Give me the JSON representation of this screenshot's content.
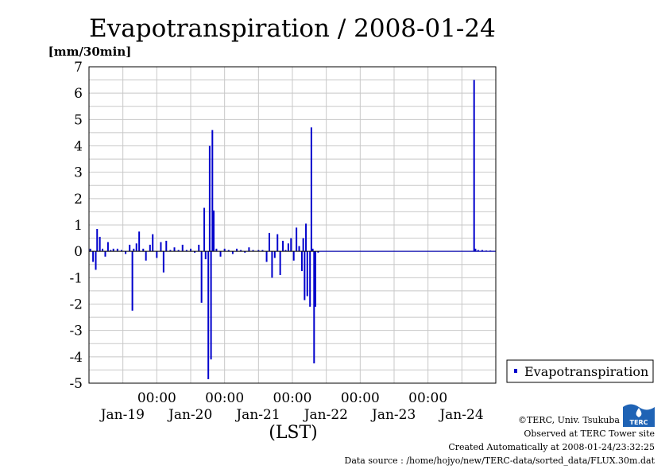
{
  "chart_data": {
    "type": "bar",
    "title": "Evapotranspiration / 2008-01-24",
    "ylabel": "[mm/30min]",
    "xlabel": "(LST)",
    "ylim": [
      -5,
      7
    ],
    "yticks": [
      7,
      6,
      5,
      4,
      3,
      2,
      1,
      0,
      -1,
      -2,
      -3,
      -4,
      -5
    ],
    "xlim": [
      0,
      6
    ],
    "xticks": [
      {
        "x": 1,
        "time": "00:00",
        "day": "Jan-19"
      },
      {
        "x": 2,
        "time": "00:00",
        "day": "Jan-20"
      },
      {
        "x": 3,
        "time": "00:00",
        "day": "Jan-21"
      },
      {
        "x": 4,
        "time": "00:00",
        "day": "Jan-22"
      },
      {
        "x": 5,
        "time": "00:00",
        "day": "Jan-23"
      },
      {
        "x": 6,
        "time": "",
        "day": "Jan-24"
      }
    ],
    "grid": true,
    "legend_position": "right",
    "series": [
      {
        "name": "Evapotranspiration",
        "color": "#0000cc",
        "points": [
          [
            0.02,
            0.1
          ],
          [
            0.06,
            -0.4
          ],
          [
            0.1,
            -0.7
          ],
          [
            0.12,
            0.85
          ],
          [
            0.16,
            0.55
          ],
          [
            0.2,
            0.1
          ],
          [
            0.24,
            -0.2
          ],
          [
            0.28,
            0.35
          ],
          [
            0.32,
            0.05
          ],
          [
            0.36,
            0.1
          ],
          [
            0.42,
            0.1
          ],
          [
            0.48,
            0.05
          ],
          [
            0.54,
            -0.1
          ],
          [
            0.6,
            0.25
          ],
          [
            0.64,
            -2.25
          ],
          [
            0.66,
            0.1
          ],
          [
            0.7,
            0.3
          ],
          [
            0.74,
            0.75
          ],
          [
            0.8,
            0.1
          ],
          [
            0.84,
            -0.35
          ],
          [
            0.9,
            0.25
          ],
          [
            0.94,
            0.65
          ],
          [
            1.0,
            -0.25
          ],
          [
            1.06,
            0.35
          ],
          [
            1.1,
            -0.8
          ],
          [
            1.14,
            0.4
          ],
          [
            1.2,
            0.05
          ],
          [
            1.26,
            0.15
          ],
          [
            1.32,
            0.05
          ],
          [
            1.38,
            0.25
          ],
          [
            1.44,
            0.05
          ],
          [
            1.5,
            0.1
          ],
          [
            1.56,
            -0.05
          ],
          [
            1.62,
            0.25
          ],
          [
            1.66,
            -1.95
          ],
          [
            1.7,
            1.65
          ],
          [
            1.72,
            -0.3
          ],
          [
            1.76,
            -4.85
          ],
          [
            1.78,
            4.0
          ],
          [
            1.8,
            -4.1
          ],
          [
            1.82,
            4.6
          ],
          [
            1.84,
            1.55
          ],
          [
            1.88,
            0.1
          ],
          [
            1.94,
            -0.2
          ],
          [
            2.0,
            0.1
          ],
          [
            2.06,
            0.05
          ],
          [
            2.12,
            -0.1
          ],
          [
            2.18,
            0.1
          ],
          [
            2.24,
            0.05
          ],
          [
            2.3,
            -0.05
          ],
          [
            2.36,
            0.15
          ],
          [
            2.42,
            0.05
          ],
          [
            2.5,
            0.05
          ],
          [
            2.56,
            0.05
          ],
          [
            2.62,
            -0.4
          ],
          [
            2.66,
            0.7
          ],
          [
            2.7,
            -1.0
          ],
          [
            2.74,
            -0.25
          ],
          [
            2.78,
            0.65
          ],
          [
            2.82,
            -0.9
          ],
          [
            2.86,
            0.4
          ],
          [
            2.9,
            0.05
          ],
          [
            2.94,
            0.3
          ],
          [
            2.98,
            0.5
          ],
          [
            3.02,
            -0.35
          ],
          [
            3.06,
            0.9
          ],
          [
            3.1,
            0.2
          ],
          [
            3.14,
            -0.75
          ],
          [
            3.16,
            0.5
          ],
          [
            3.18,
            -1.85
          ],
          [
            3.2,
            1.05
          ],
          [
            3.22,
            -1.7
          ],
          [
            3.26,
            -2.1
          ],
          [
            3.28,
            4.7
          ],
          [
            3.3,
            0.1
          ],
          [
            3.32,
            -4.25
          ],
          [
            3.34,
            -2.1
          ],
          [
            3.38,
            -0.05
          ],
          [
            5.68,
            6.5
          ],
          [
            5.7,
            0.1
          ],
          [
            5.74,
            0.05
          ],
          [
            5.8,
            0.05
          ],
          [
            5.86,
            0.03
          ],
          [
            5.92,
            0.03
          ],
          [
            5.98,
            0.02
          ]
        ]
      }
    ]
  },
  "credits": {
    "copyright": "©TERC, Univ. Tsukuba",
    "observed": "Observed at TERC Tower site",
    "created": "Created Automatically at 2008-01-24/23:32:25",
    "source": "Data source : /home/hojyo/new/TERC-data/sorted_data/FLUX.30m.dat"
  },
  "logo": {
    "text": "TERC",
    "color": "#1f63b5"
  }
}
